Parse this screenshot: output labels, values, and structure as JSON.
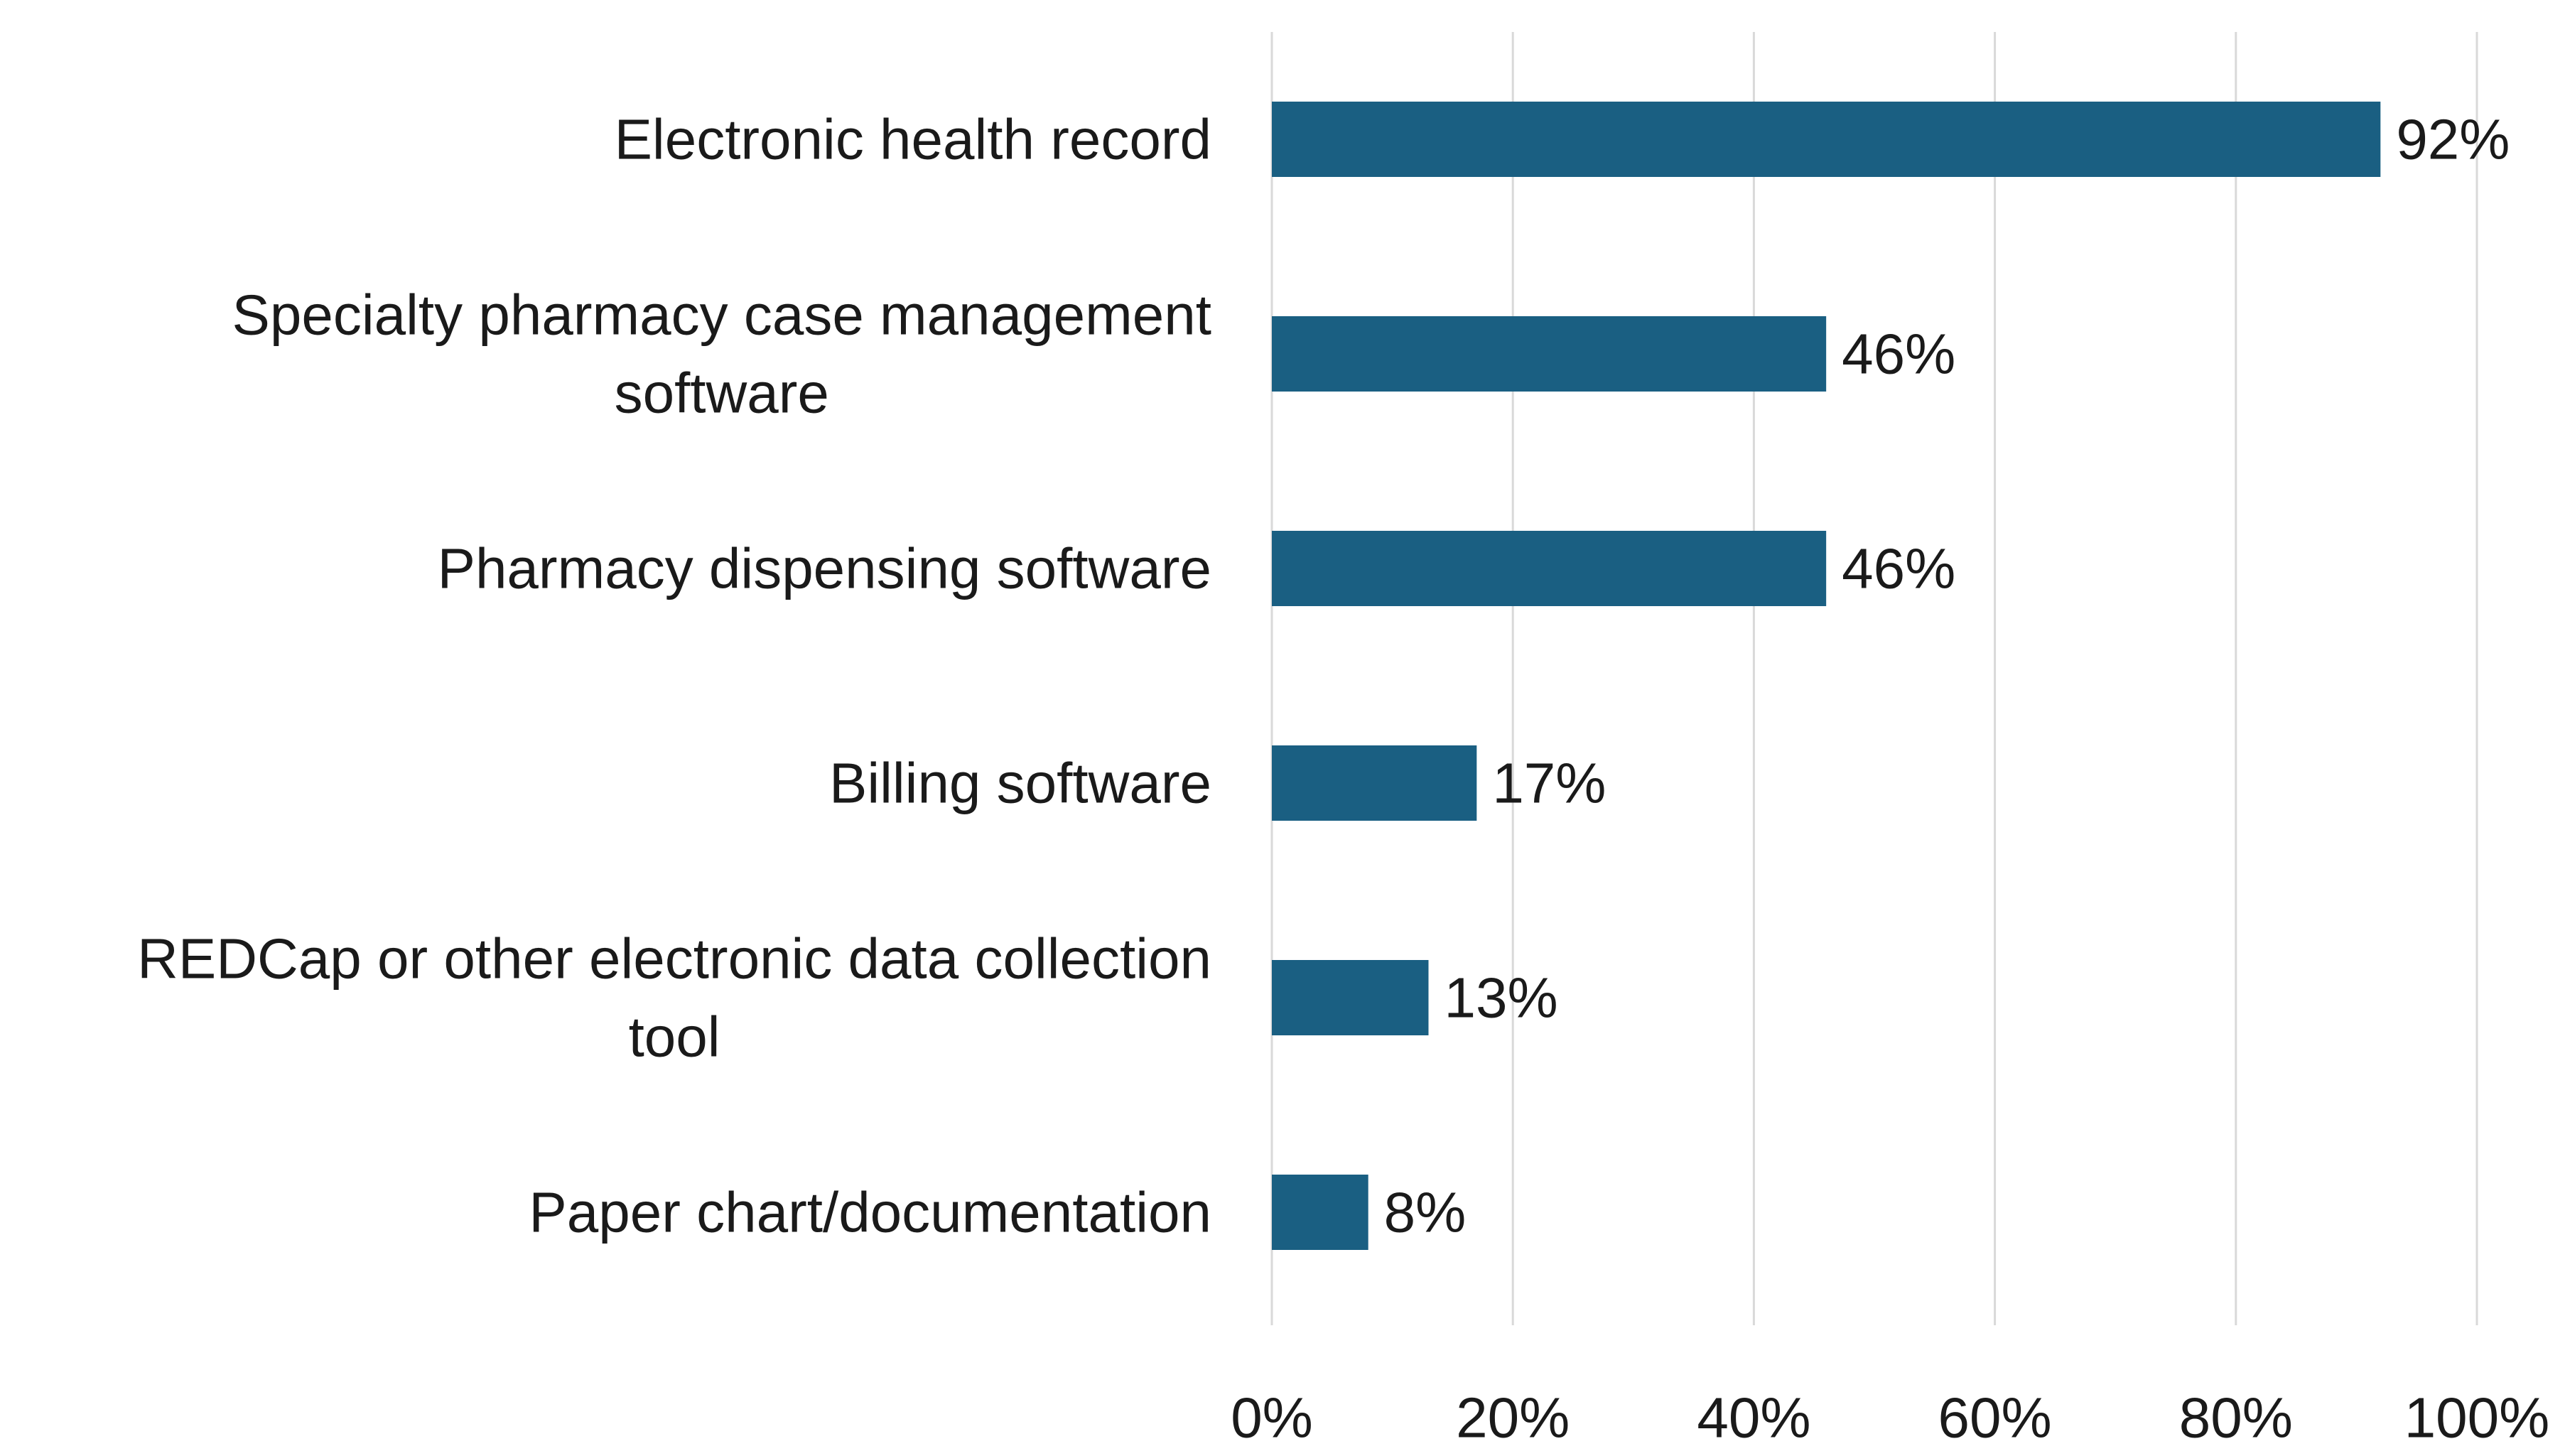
{
  "colors": {
    "bar": "#1a5f82",
    "grid": "#d9d9d9",
    "text": "#1a1a1a",
    "background": "#ffffff"
  },
  "chart_data": {
    "type": "bar",
    "orientation": "horizontal",
    "title": "",
    "xlabel": "",
    "ylabel": "",
    "categories": [
      [
        "Electronic health record"
      ],
      [
        "Specialty pharmacy case management",
        "software"
      ],
      [
        "Pharmacy dispensing software"
      ],
      [
        "Billing software"
      ],
      [
        "REDCap or other electronic data collection",
        "tool"
      ],
      [
        "Paper chart/documentation"
      ]
    ],
    "values": [
      92,
      46,
      46,
      17,
      13,
      8
    ],
    "value_labels": [
      "92%",
      "46%",
      "46%",
      "17%",
      "13%",
      "8%"
    ],
    "xlim": [
      0,
      100
    ],
    "xticks": [
      0,
      20,
      40,
      60,
      80,
      100
    ],
    "xtick_labels": [
      "0%",
      "20%",
      "40%",
      "60%",
      "80%",
      "100%"
    ],
    "grid": true,
    "legend": false
  }
}
